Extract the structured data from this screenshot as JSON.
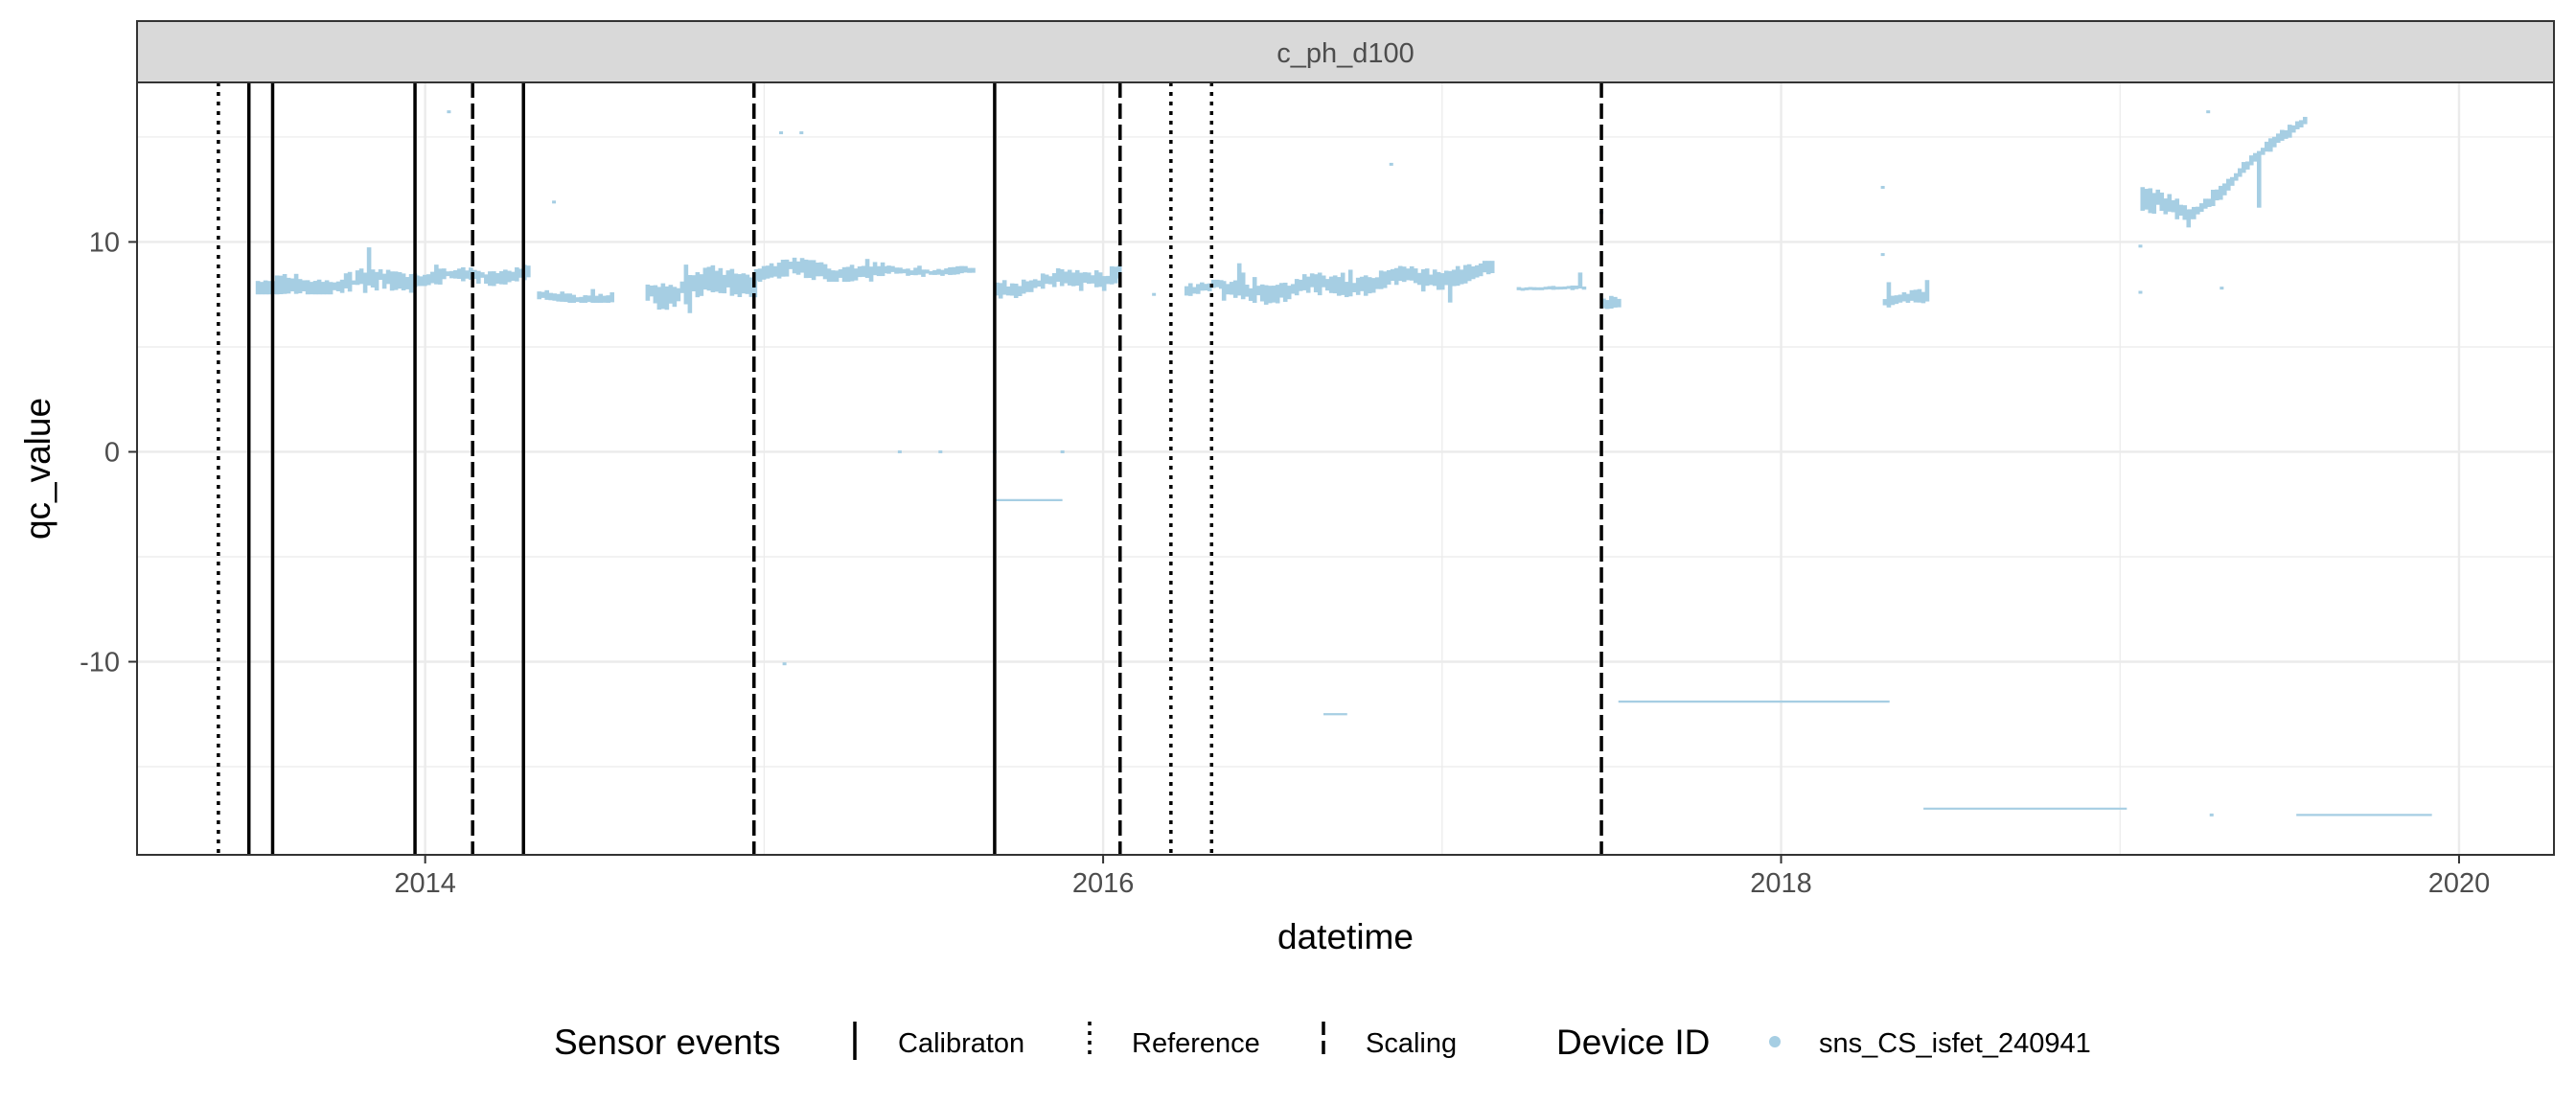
{
  "chart_data": {
    "type": "scatter",
    "title": "",
    "facet_label": "c_ph_d100",
    "xlabel": "datetime",
    "ylabel": "qc_value",
    "xlim": [
      2013.15,
      2020.28
    ],
    "ylim": [
      -19.2,
      17.6
    ],
    "x_ticks": [
      2014,
      2016,
      2018,
      2020
    ],
    "x_tick_labels": [
      "2014",
      "2016",
      "2018",
      "2020"
    ],
    "y_ticks": [
      -10,
      0,
      10
    ],
    "y_tick_labels": [
      "-10",
      "0",
      "10"
    ],
    "grid": true,
    "colors": {
      "series": "#a6cee3",
      "event_line": "#000000",
      "strip_bg": "#d9d9d9",
      "grid": "#ebebeb"
    },
    "legend_position": "bottom",
    "legend": {
      "events_title": "Sensor events",
      "events": [
        {
          "key": "calibration",
          "label": "Calibraton",
          "linetype": "solid"
        },
        {
          "key": "reference",
          "label": "Reference",
          "linetype": "dotted"
        },
        {
          "key": "scaling",
          "label": "Scaling",
          "linetype": "dashed"
        }
      ],
      "device_title": "Device ID",
      "devices": [
        {
          "label": "sns_CS_isfet_240941"
        }
      ]
    },
    "events": [
      {
        "x": 2013.39,
        "type": "reference"
      },
      {
        "x": 2013.48,
        "type": "calibration"
      },
      {
        "x": 2013.55,
        "type": "calibration"
      },
      {
        "x": 2013.97,
        "type": "calibration"
      },
      {
        "x": 2014.14,
        "type": "scaling"
      },
      {
        "x": 2014.29,
        "type": "calibration"
      },
      {
        "x": 2014.97,
        "type": "scaling"
      },
      {
        "x": 2015.68,
        "type": "calibration"
      },
      {
        "x": 2016.05,
        "type": "scaling"
      },
      {
        "x": 2016.2,
        "type": "reference"
      },
      {
        "x": 2016.32,
        "type": "reference"
      },
      {
        "x": 2017.47,
        "type": "scaling"
      }
    ],
    "series": [
      {
        "name": "sns_CS_isfet_240941",
        "segments": [
          {
            "x0": 2013.5,
            "x1": 2013.97,
            "y0": 7.7,
            "y1": 8.3,
            "ylo": 7.5,
            "yhi": 9.9,
            "spread": 0.5
          },
          {
            "x0": 2013.97,
            "x1": 2014.3,
            "y0": 8.2,
            "y1": 8.5,
            "ylo": 7.9,
            "yhi": 9.1,
            "spread": 0.4
          },
          {
            "x0": 2014.33,
            "x1": 2014.55,
            "y0": 7.4,
            "y1": 7.3,
            "ylo": 7.1,
            "yhi": 7.8,
            "spread": 0.25
          },
          {
            "x0": 2014.65,
            "x1": 2014.97,
            "y0": 7.5,
            "y1": 8.2,
            "ylo": 6.6,
            "yhi": 9.3,
            "spread": 0.7
          },
          {
            "x0": 2014.97,
            "x1": 2015.35,
            "y0": 8.6,
            "y1": 8.6,
            "ylo": 8.1,
            "yhi": 9.3,
            "spread": 0.5
          },
          {
            "x0": 2015.35,
            "x1": 2015.62,
            "y0": 8.6,
            "y1": 8.6,
            "ylo": 8.3,
            "yhi": 8.9,
            "spread": 0.2
          },
          {
            "x0": 2015.68,
            "x1": 2016.05,
            "y0": 7.7,
            "y1": 8.6,
            "ylo": 7.2,
            "yhi": 9.0,
            "spread": 0.45
          },
          {
            "x0": 2016.24,
            "x1": 2016.35,
            "y0": 7.8,
            "y1": 7.9,
            "ylo": 7.3,
            "yhi": 8.2,
            "spread": 0.3
          },
          {
            "x0": 2016.35,
            "x1": 2017.15,
            "y0": 7.5,
            "y1": 8.6,
            "ylo": 6.9,
            "yhi": 9.1,
            "spread": 0.5
          },
          {
            "x0": 2017.22,
            "x1": 2017.42,
            "y0": 7.8,
            "y1": 7.8,
            "ylo": 7.7,
            "yhi": 8.8,
            "spread": 0.1
          },
          {
            "x0": 2017.47,
            "x1": 2017.52,
            "y0": 7.2,
            "y1": 7.2,
            "ylo": 6.4,
            "yhi": 9.4,
            "spread": 0.4
          },
          {
            "x0": 2018.3,
            "x1": 2018.43,
            "y0": 7.2,
            "y1": 7.3,
            "ylo": 6.5,
            "yhi": 8.2,
            "spread": 0.35
          },
          {
            "x0": 2019.06,
            "x1": 2019.2,
            "y0": 12.2,
            "y1": 11.0,
            "ylo": 9.8,
            "yhi": 13.0,
            "spread": 0.6
          },
          {
            "x0": 2019.2,
            "x1": 2019.55,
            "y0": 11.2,
            "y1": 16.1,
            "ylo": 10.0,
            "yhi": 16.3,
            "spread": 0.35
          }
        ],
        "hlines": [
          {
            "x0": 2017.52,
            "x1": 2018.32,
            "y": -11.9
          },
          {
            "x0": 2018.42,
            "x1": 2019.02,
            "y": -17.0
          },
          {
            "x0": 2019.52,
            "x1": 2019.92,
            "y": -17.3
          },
          {
            "x0": 2016.65,
            "x1": 2016.72,
            "y": -12.5
          },
          {
            "x0": 2015.68,
            "x1": 2015.88,
            "y": -2.3
          }
        ],
        "points": [
          [
            2014.07,
            16.2
          ],
          [
            2014.38,
            11.9
          ],
          [
            2015.05,
            15.2
          ],
          [
            2015.11,
            15.2
          ],
          [
            2015.06,
            -10.1
          ],
          [
            2015.4,
            0.0
          ],
          [
            2015.52,
            0.0
          ],
          [
            2015.68,
            0.0
          ],
          [
            2015.88,
            0.0
          ],
          [
            2016.85,
            13.7
          ],
          [
            2017.47,
            11.4
          ],
          [
            2018.3,
            12.6
          ],
          [
            2018.3,
            9.4
          ],
          [
            2019.06,
            7.6
          ],
          [
            2019.06,
            9.8
          ],
          [
            2019.26,
            16.2
          ],
          [
            2019.3,
            7.8
          ],
          [
            2019.27,
            -17.3
          ],
          [
            2016.55,
            7.6
          ],
          [
            2016.15,
            7.5
          ]
        ]
      }
    ]
  }
}
